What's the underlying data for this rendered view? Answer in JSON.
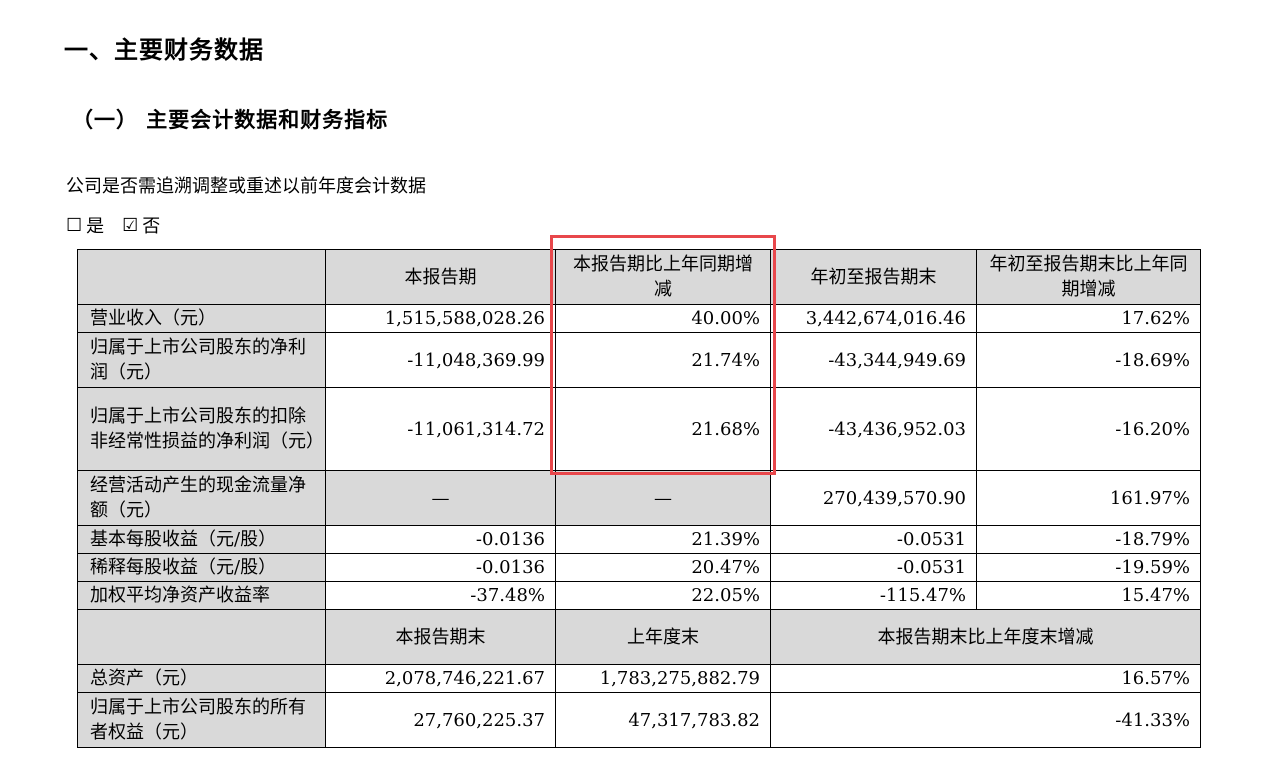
{
  "heading": "一、主要财务数据",
  "subheading": "（一） 主要会计数据和财务指标",
  "question": "公司是否需追溯调整或重述以前年度会计数据",
  "choice": {
    "yes_box": "☐",
    "yes_label": "是",
    "no_box": "☑",
    "no_label": "否"
  },
  "table": {
    "header1": [
      "",
      "本报告期",
      "本报告期比上年同期增减",
      "年初至报告期末",
      "年初至报告期末比上年同期增减"
    ],
    "rows1": [
      [
        "营业收入（元）",
        "1,515,588,028.26",
        "40.00%",
        "3,442,674,016.46",
        "17.62%"
      ],
      [
        "归属于上市公司股东的净利润（元）",
        "-11,048,369.99",
        "21.74%",
        "-43,344,949.69",
        "-18.69%"
      ],
      [
        "归属于上市公司股东的扣除非经常性损益的净利润（元）",
        "-11,061,314.72",
        "21.68%",
        "-43,436,952.03",
        "-16.20%"
      ],
      [
        "经营活动产生的现金流量净额（元）",
        "—",
        "—",
        "270,439,570.90",
        "161.97%"
      ],
      [
        "基本每股收益（元/股）",
        "-0.0136",
        "21.39%",
        "-0.0531",
        "-18.79%"
      ],
      [
        "稀释每股收益（元/股）",
        "-0.0136",
        "20.47%",
        "-0.0531",
        "-19.59%"
      ],
      [
        "加权平均净资产收益率",
        "-37.48%",
        "22.05%",
        "-115.47%",
        "15.47%"
      ]
    ],
    "header2": [
      "",
      "本报告期末",
      "上年度末",
      "本报告期末比上年度末增减"
    ],
    "rows2": [
      [
        "总资产（元）",
        "2,078,746,221.67",
        "1,783,275,882.79",
        "16.57%"
      ],
      [
        "归属于上市公司股东的所有者权益（元）",
        "27,760,225.37",
        "47,317,783.82",
        "-41.33%"
      ]
    ]
  },
  "highlight_color": "#e8474b"
}
